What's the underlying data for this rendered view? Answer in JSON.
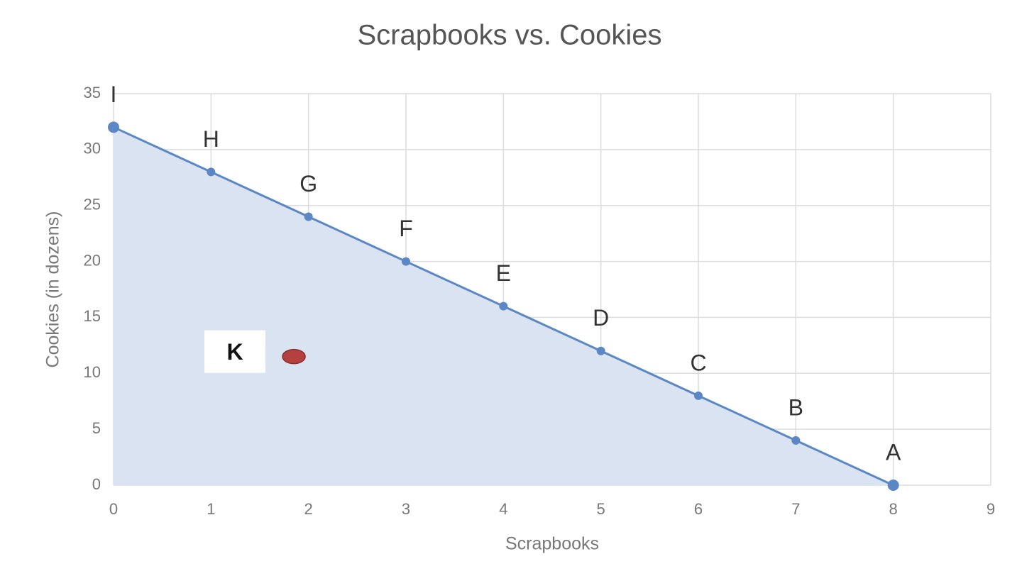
{
  "chart_data": {
    "type": "area",
    "title": "Scrapbooks vs. Cookies",
    "x_label": "Scrapbooks",
    "y_label": "Cookies (in dozens)",
    "x": [
      0,
      1,
      2,
      3,
      4,
      5,
      6,
      7,
      8
    ],
    "values": [
      32,
      28,
      24,
      20,
      16,
      12,
      8,
      4,
      0
    ],
    "point_labels": [
      "I",
      "H",
      "G",
      "F",
      "E",
      "D",
      "C",
      "B",
      "A"
    ],
    "color": "#5b87c5",
    "fill_color": "#d9e3f1",
    "points": [
      {
        "label": "K",
        "x": 1.85,
        "y": 11.5,
        "color": "#b5413f"
      }
    ],
    "xlim": [
      0,
      9
    ],
    "ylim": [
      0,
      35
    ],
    "xticks": [
      0,
      1,
      2,
      3,
      4,
      5,
      6,
      7,
      8,
      9
    ],
    "yticks": [
      0,
      5,
      10,
      15,
      20,
      25,
      30,
      35
    ],
    "grid": true
  }
}
